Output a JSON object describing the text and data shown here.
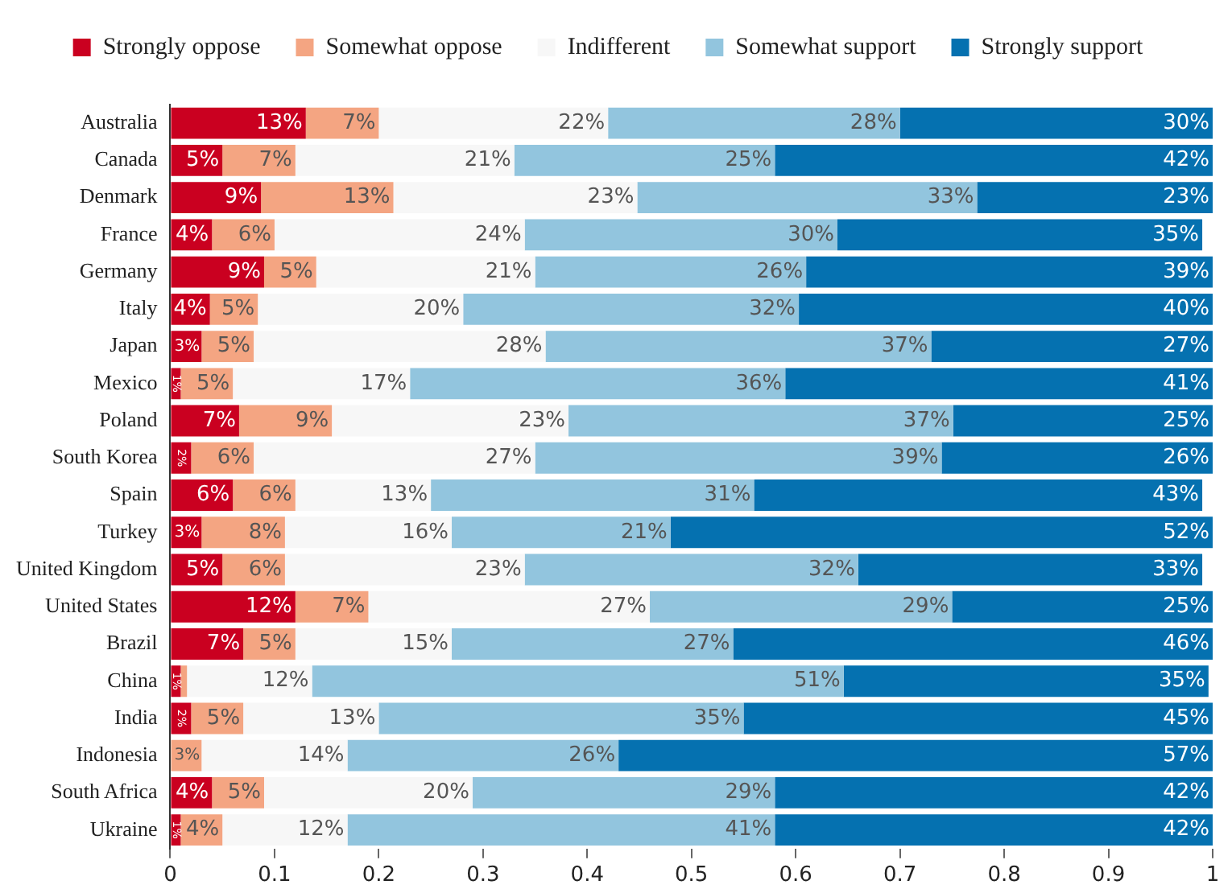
{
  "chart_data": {
    "type": "bar",
    "orientation": "horizontal",
    "stacked": true,
    "legend": "top",
    "grid": false,
    "categories": [
      "Australia",
      "Canada",
      "Denmark",
      "France",
      "Germany",
      "Italy",
      "Japan",
      "Mexico",
      "Poland",
      "South Korea",
      "Spain",
      "Turkey",
      "United Kingdom",
      "United States",
      "Brazil",
      "China",
      "India",
      "Indonesia",
      "South Africa",
      "Ukraine"
    ],
    "xlim": [
      0,
      1
    ],
    "xticks": [
      0,
      0.1,
      0.2,
      0.3,
      0.4,
      0.5,
      0.6,
      0.7,
      0.8,
      0.9,
      1
    ],
    "series": [
      {
        "name": "Strongly oppose",
        "color": "#ca0020",
        "values": [
          0.13,
          0.05,
          0.087,
          0.04,
          0.09,
          0.038,
          0.03,
          0.01,
          0.066,
          0.02,
          0.06,
          0.03,
          0.05,
          0.12,
          0.07,
          0.01,
          0.02,
          null,
          0.04,
          0.01
        ],
        "value_labels": [
          "13%",
          "5%",
          "9%",
          "4%",
          "9%",
          "4%",
          "3%",
          "1%",
          "7%",
          "2%",
          "6%",
          "3%",
          "5%",
          "12%",
          "7%",
          "1%",
          "2%",
          null,
          "4%",
          "1%"
        ]
      },
      {
        "name": "Somewhat oppose",
        "color": "#f4a582",
        "values": [
          0.07,
          0.07,
          0.127,
          0.06,
          0.05,
          0.046,
          0.05,
          0.05,
          0.089,
          0.06,
          0.06,
          0.08,
          0.06,
          0.07,
          0.05,
          0.006,
          0.05,
          0.03,
          0.05,
          0.04
        ],
        "value_labels": [
          "7%",
          "7%",
          "13%",
          "6%",
          "5%",
          "5%",
          "5%",
          "5%",
          "9%",
          "6%",
          "6%",
          "8%",
          "6%",
          "7%",
          "5%",
          null,
          "5%",
          "3%",
          "5%",
          "4%"
        ]
      },
      {
        "name": "Indifferent",
        "color": "#f7f7f7",
        "values": [
          0.22,
          0.21,
          0.234,
          0.24,
          0.21,
          0.197,
          0.28,
          0.17,
          0.227,
          0.27,
          0.13,
          0.16,
          0.23,
          0.27,
          0.15,
          0.12,
          0.13,
          0.14,
          0.2,
          0.12
        ],
        "value_labels": [
          "22%",
          "21%",
          "23%",
          "24%",
          "21%",
          "20%",
          "28%",
          "17%",
          "23%",
          "27%",
          "13%",
          "16%",
          "23%",
          "27%",
          "15%",
          "12%",
          "13%",
          "14%",
          "20%",
          "12%"
        ]
      },
      {
        "name": "Somewhat support",
        "color": "#92c5de",
        "values": [
          0.28,
          0.25,
          0.326,
          0.3,
          0.26,
          0.322,
          0.37,
          0.36,
          0.369,
          0.39,
          0.31,
          0.21,
          0.32,
          0.29,
          0.27,
          0.51,
          0.35,
          0.26,
          0.29,
          0.41
        ],
        "value_labels": [
          "28%",
          "25%",
          "33%",
          "30%",
          "26%",
          "32%",
          "37%",
          "36%",
          "37%",
          "39%",
          "31%",
          "21%",
          "32%",
          "29%",
          "27%",
          "51%",
          "35%",
          "26%",
          "29%",
          "41%"
        ]
      },
      {
        "name": "Strongly support",
        "color": "#0571b0",
        "values": [
          0.3,
          0.42,
          0.226,
          0.35,
          0.39,
          0.397,
          0.27,
          0.41,
          0.249,
          0.26,
          0.43,
          0.52,
          0.33,
          0.25,
          0.46,
          0.35,
          0.45,
          0.57,
          0.42,
          0.42
        ],
        "value_labels": [
          "30%",
          "42%",
          "23%",
          "35%",
          "39%",
          "40%",
          "27%",
          "41%",
          "25%",
          "26%",
          "43%",
          "52%",
          "33%",
          "25%",
          "46%",
          "35%",
          "45%",
          "57%",
          "42%",
          "42%"
        ]
      }
    ]
  }
}
